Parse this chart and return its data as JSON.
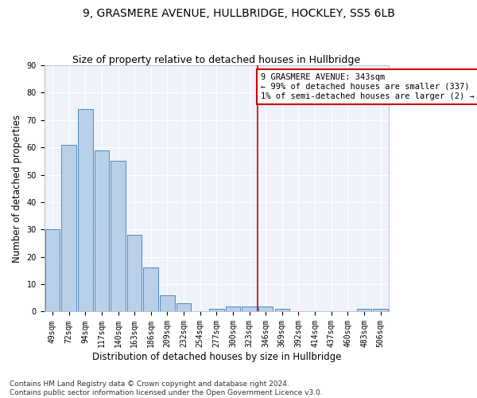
{
  "title": "9, GRASMERE AVENUE, HULLBRIDGE, HOCKLEY, SS5 6LB",
  "subtitle": "Size of property relative to detached houses in Hullbridge",
  "xlabel": "Distribution of detached houses by size in Hullbridge",
  "ylabel": "Number of detached properties",
  "categories": [
    "49sqm",
    "72sqm",
    "94sqm",
    "117sqm",
    "140sqm",
    "163sqm",
    "186sqm",
    "209sqm",
    "232sqm",
    "254sqm",
    "277sqm",
    "300sqm",
    "323sqm",
    "346sqm",
    "369sqm",
    "392sqm",
    "414sqm",
    "437sqm",
    "460sqm",
    "483sqm",
    "506sqm"
  ],
  "values": [
    30,
    61,
    74,
    59,
    55,
    28,
    16,
    6,
    3,
    0,
    1,
    2,
    2,
    2,
    1,
    0,
    0,
    0,
    0,
    1,
    1
  ],
  "bar_color": "#b8d0ea",
  "bar_edge_color": "#5588bb",
  "vline_index": 13,
  "vline_color": "#cc0000",
  "annotation_text": "9 GRASMERE AVENUE: 343sqm\n← 99% of detached houses are smaller (337)\n1% of semi-detached houses are larger (2) →",
  "annotation_box_color": "#ffffff",
  "annotation_box_edge": "#cc0000",
  "footnote": "Contains HM Land Registry data © Crown copyright and database right 2024.\nContains public sector information licensed under the Open Government Licence v3.0.",
  "ylim": [
    0,
    90
  ],
  "background_color": "#eef2fa",
  "title_fontsize": 10,
  "subtitle_fontsize": 9,
  "xlabel_fontsize": 8.5,
  "ylabel_fontsize": 8.5,
  "tick_fontsize": 7,
  "footnote_fontsize": 6.5,
  "annotation_fontsize": 7.5
}
